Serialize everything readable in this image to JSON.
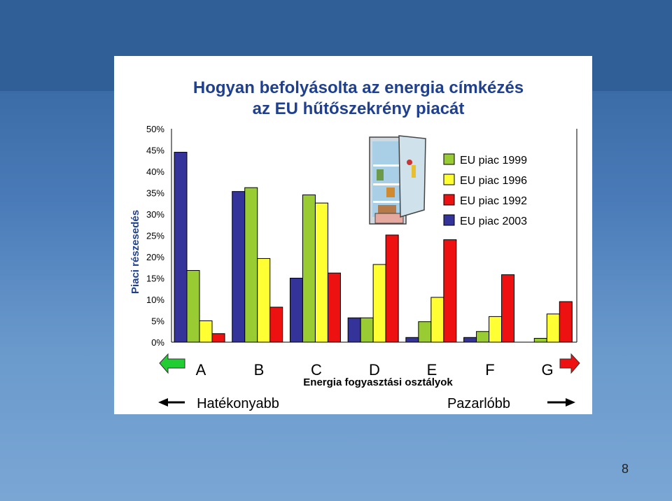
{
  "slide": {
    "page_number": "8"
  },
  "chart_data": {
    "type": "bar",
    "title": "Hogyan befolyásolta az energia címkézés",
    "subtitle": "az EU hűtőszekrény piacát",
    "xlabel": "Energia fogyasztási osztályok",
    "ylabel": "Piaci részesedés",
    "ylim": [
      0,
      50
    ],
    "yticks": [
      "0%",
      "5%",
      "10%",
      "15%",
      "20%",
      "25%",
      "30%",
      "35%",
      "40%",
      "45%",
      "50%"
    ],
    "categories": [
      "A",
      "B",
      "C",
      "D",
      "E",
      "F",
      "G"
    ],
    "legend_position": "top-right",
    "series": [
      {
        "name": "EU piac 2003",
        "color": "#333399",
        "values": [
          44.5,
          35.3,
          15,
          5.7,
          1.1,
          1.1,
          0
        ]
      },
      {
        "name": "EU piac 1999",
        "color": "#99cc33",
        "values": [
          16.8,
          36.2,
          34.5,
          5.7,
          4.8,
          2.5,
          0.9
        ]
      },
      {
        "name": "EU piac 1996",
        "color": "#ffff33",
        "values": [
          5,
          19.6,
          32.6,
          18.2,
          10.5,
          6,
          6.6
        ]
      },
      {
        "name": "EU piac 1992",
        "color": "#ee1111",
        "values": [
          2,
          8.2,
          16.2,
          25.1,
          24,
          15.8,
          9.5
        ]
      }
    ],
    "legend_order": [
      "EU piac 1999",
      "EU piac 1996",
      "EU piac 1992",
      "EU piac 2003"
    ],
    "bottom_left_label": "Hatékonyabb",
    "bottom_right_label": "Pazarlóbb"
  }
}
